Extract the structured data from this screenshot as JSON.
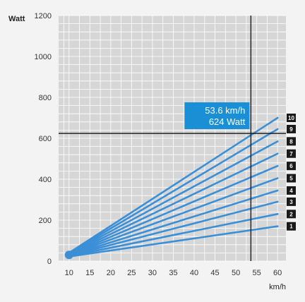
{
  "chart_data": {
    "type": "line",
    "title": "",
    "ylabel": "Watt",
    "xlabel": "km/h",
    "xlim": [
      7.5,
      62
    ],
    "ylim": [
      0,
      1200
    ],
    "x_ticks": [
      10,
      15,
      20,
      25,
      30,
      35,
      40,
      45,
      50,
      55,
      60
    ],
    "y_ticks": [
      0,
      200,
      400,
      600,
      800,
      1000,
      1200
    ],
    "grid": true,
    "colors": {
      "lines": "#3a8fd6",
      "annotation_bg": "#1a8fd6",
      "crosshair": "#111111",
      "badge": "#1a1a1a",
      "plot_bg": "#d6d6d6",
      "grid": "#ffffff"
    },
    "series": [
      {
        "name": "1",
        "x": [
          10,
          60
        ],
        "y": [
          22,
          170
        ]
      },
      {
        "name": "2",
        "x": [
          10,
          60
        ],
        "y": [
          24,
          230
        ]
      },
      {
        "name": "3",
        "x": [
          10,
          60
        ],
        "y": [
          26,
          290
        ]
      },
      {
        "name": "4",
        "x": [
          10,
          60
        ],
        "y": [
          28,
          345
        ]
      },
      {
        "name": "5",
        "x": [
          10,
          60
        ],
        "y": [
          30,
          405
        ]
      },
      {
        "name": "6",
        "x": [
          10,
          60
        ],
        "y": [
          32,
          465
        ]
      },
      {
        "name": "7",
        "x": [
          10,
          60
        ],
        "y": [
          34,
          525
        ]
      },
      {
        "name": "8",
        "x": [
          10,
          60
        ],
        "y": [
          36,
          585
        ]
      },
      {
        "name": "9",
        "x": [
          10,
          60
        ],
        "y": [
          38,
          645
        ]
      },
      {
        "name": "10",
        "x": [
          10,
          60
        ],
        "y": [
          40,
          700
        ]
      }
    ],
    "crosshair": {
      "x": 53.6,
      "y": 624
    },
    "annotation": {
      "line1": "53.6 km/h",
      "line2": "624 Watt"
    },
    "legend_badges": [
      "10",
      "9",
      "8",
      "7",
      "6",
      "5",
      "4",
      "3",
      "2",
      "1"
    ]
  }
}
